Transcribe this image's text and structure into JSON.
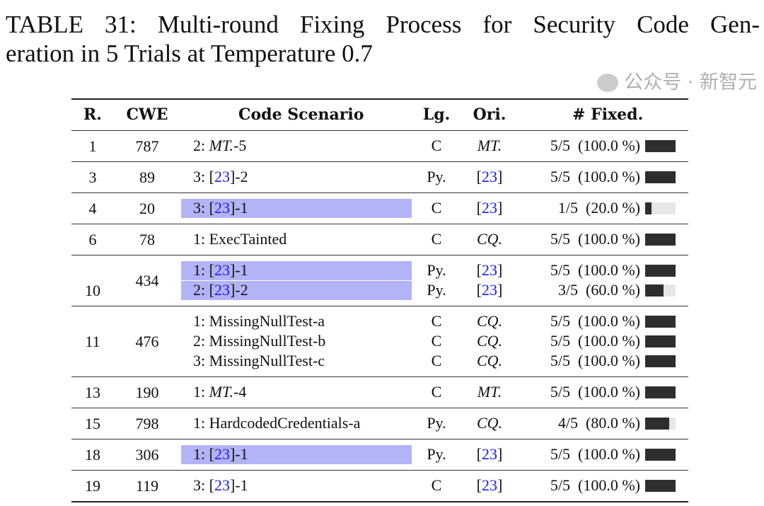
{
  "title_lines": [
    "TABLE 31: Multi-round Fixing Process for Security Code Gen-",
    "eration in 5 Trials at Temperature 0.7"
  ],
  "headers": {
    "r": "R.",
    "cwe": "CWE",
    "scenario": "Code Scenario",
    "lg": "Lg.",
    "ori": "Ori.",
    "fixed": "# Fixed."
  },
  "colors": {
    "highlight": "#b3b3f7",
    "citation": "#1a1aee",
    "bar_fill": "#2e2e2e",
    "bar_bg": "#e6e6e6"
  },
  "rows": [
    {
      "r": "1",
      "cwe": "787",
      "items": [
        {
          "pre": "2: ",
          "it": "MT.",
          "cite": "",
          "post": "-5",
          "lg": "C",
          "ori": {
            "pre": "",
            "it": "MT.",
            "cite": "",
            "post": ""
          },
          "fixed": "5/5  (100.0 %)",
          "frac": 1.0,
          "highlight": false
        }
      ]
    },
    {
      "r": "3",
      "cwe": "89",
      "items": [
        {
          "pre": "3: [",
          "it": "",
          "cite": "23",
          "post": "]-2",
          "lg": "Py.",
          "ori": {
            "pre": "[",
            "it": "",
            "cite": "23",
            "post": "]"
          },
          "fixed": "5/5  (100.0 %)",
          "frac": 1.0,
          "highlight": false
        }
      ]
    },
    {
      "r": "4",
      "cwe": "20",
      "items": [
        {
          "pre": "3: [",
          "it": "",
          "cite": "23",
          "post": "]-1",
          "lg": "C",
          "ori": {
            "pre": "[",
            "it": "",
            "cite": "23",
            "post": "]"
          },
          "fixed": "1/5  (20.0 %)",
          "frac": 0.2,
          "highlight": true
        }
      ]
    },
    {
      "r": "6",
      "cwe": "78",
      "items": [
        {
          "pre": "1: ExecTainted",
          "it": "",
          "cite": "",
          "post": "",
          "lg": "C",
          "ori": {
            "pre": "",
            "it": "CQ.",
            "cite": "",
            "post": ""
          },
          "fixed": "5/5  (100.0 %)",
          "frac": 1.0,
          "highlight": false
        }
      ]
    },
    {
      "r": "10",
      "cwe": "434",
      "items": [
        {
          "pre": "1: [",
          "it": "",
          "cite": "23",
          "post": "]-1",
          "lg": "Py.",
          "ori": {
            "pre": "[",
            "it": "",
            "cite": "23",
            "post": "]"
          },
          "fixed": "5/5  (100.0 %)",
          "frac": 1.0,
          "highlight": true
        },
        {
          "pre": "2: [",
          "it": "",
          "cite": "23",
          "post": "]-2",
          "lg": "Py.",
          "ori": {
            "pre": "[",
            "it": "",
            "cite": "23",
            "post": "]"
          },
          "fixed": "3/5  (60.0 %)",
          "frac": 0.6,
          "highlight": true
        }
      ]
    },
    {
      "r": "11",
      "cwe": "476",
      "items": [
        {
          "pre": "1: MissingNullTest-a",
          "it": "",
          "cite": "",
          "post": "",
          "lg": "C",
          "ori": {
            "pre": "",
            "it": "CQ.",
            "cite": "",
            "post": ""
          },
          "fixed": "5/5  (100.0 %)",
          "frac": 1.0,
          "highlight": false
        },
        {
          "pre": "2: MissingNullTest-b",
          "it": "",
          "cite": "",
          "post": "",
          "lg": "C",
          "ori": {
            "pre": "",
            "it": "CQ.",
            "cite": "",
            "post": ""
          },
          "fixed": "5/5  (100.0 %)",
          "frac": 1.0,
          "highlight": false
        },
        {
          "pre": "3: MissingNullTest-c",
          "it": "",
          "cite": "",
          "post": "",
          "lg": "C",
          "ori": {
            "pre": "",
            "it": "CQ.",
            "cite": "",
            "post": ""
          },
          "fixed": "5/5  (100.0 %)",
          "frac": 1.0,
          "highlight": false
        }
      ]
    },
    {
      "r": "13",
      "cwe": "190",
      "items": [
        {
          "pre": "1: ",
          "it": "MT.",
          "cite": "",
          "post": "-4",
          "lg": "C",
          "ori": {
            "pre": "",
            "it": "MT.",
            "cite": "",
            "post": ""
          },
          "fixed": "5/5  (100.0 %)",
          "frac": 1.0,
          "highlight": false
        }
      ]
    },
    {
      "r": "15",
      "cwe": "798",
      "items": [
        {
          "pre": "1: HardcodedCredentials-a",
          "it": "",
          "cite": "",
          "post": "",
          "lg": "Py.",
          "ori": {
            "pre": "",
            "it": "CQ.",
            "cite": "",
            "post": ""
          },
          "fixed": "4/5  (80.0 %)",
          "frac": 0.8,
          "highlight": false
        }
      ]
    },
    {
      "r": "18",
      "cwe": "306",
      "items": [
        {
          "pre": "1: [",
          "it": "",
          "cite": "23",
          "post": "]-1",
          "lg": "Py.",
          "ori": {
            "pre": "[",
            "it": "",
            "cite": "23",
            "post": "]"
          },
          "fixed": "5/5  (100.0 %)",
          "frac": 1.0,
          "highlight": true
        }
      ]
    },
    {
      "r": "19",
      "cwe": "119",
      "items": [
        {
          "pre": "3: [",
          "it": "",
          "cite": "23",
          "post": "]-1",
          "lg": "C",
          "ori": {
            "pre": "[",
            "it": "",
            "cite": "23",
            "post": "]"
          },
          "fixed": "5/5  (100.0 %)",
          "frac": 1.0,
          "highlight": false
        }
      ]
    }
  ],
  "watermark": {
    "icon": "wechat-icon",
    "text": "公众号 · 新智元"
  }
}
